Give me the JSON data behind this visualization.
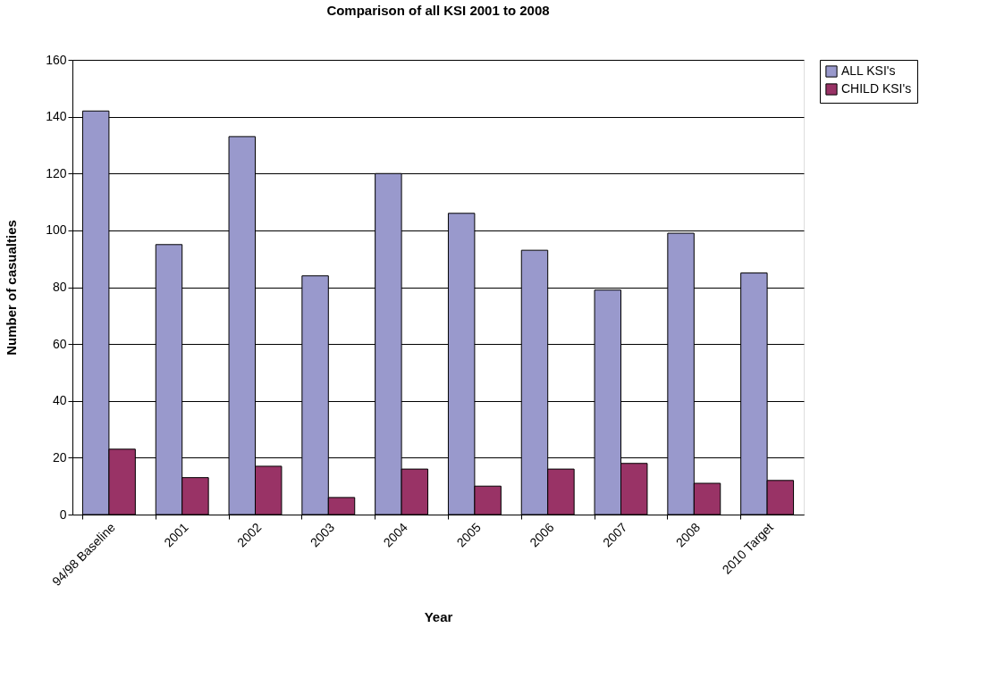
{
  "chart_data": {
    "type": "bar",
    "title": "Comparison of all KSI 2001 to 2008",
    "xlabel": "Year",
    "ylabel": "Number of casualties",
    "categories": [
      "94/98 Baseline",
      "2001",
      "2002",
      "2003",
      "2004",
      "2005",
      "2006",
      "2007",
      "2008",
      "2010 Target"
    ],
    "series": [
      {
        "name": "ALL KSI's",
        "color": "#9999cc",
        "values": [
          142,
          95,
          133,
          84,
          120,
          106,
          93,
          79,
          99,
          85
        ]
      },
      {
        "name": "CHILD KSI's",
        "color": "#993366",
        "values": [
          23,
          13,
          17,
          6,
          16,
          10,
          16,
          18,
          11,
          12
        ]
      }
    ],
    "ylim": [
      0,
      160
    ],
    "yticks": [
      0,
      20,
      40,
      60,
      80,
      100,
      120,
      140,
      160
    ],
    "grid": "y",
    "legend": "right"
  }
}
